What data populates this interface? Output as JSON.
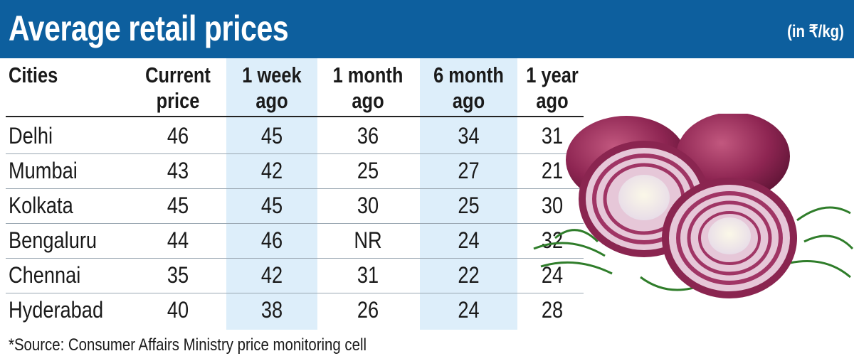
{
  "title": "Average retail prices",
  "unit_note": "(in ₹/kg)",
  "columns": [
    {
      "line1": "Cities",
      "line2": ""
    },
    {
      "line1": "Current",
      "line2": "price"
    },
    {
      "line1": "1 week",
      "line2": "ago"
    },
    {
      "line1": "1 month",
      "line2": "ago"
    },
    {
      "line1": "6 month",
      "line2": "ago"
    },
    {
      "line1": "1 year",
      "line2": "ago"
    }
  ],
  "rows": [
    {
      "city": "Delhi",
      "values": [
        "46",
        "45",
        "36",
        "34",
        "31"
      ]
    },
    {
      "city": "Mumbai",
      "values": [
        "43",
        "42",
        "25",
        "27",
        "21"
      ]
    },
    {
      "city": "Kolkata",
      "values": [
        "45",
        "45",
        "30",
        "25",
        "30"
      ]
    },
    {
      "city": "Bengaluru",
      "values": [
        "44",
        "46",
        "NR",
        "24",
        "32"
      ]
    },
    {
      "city": "Chennai",
      "values": [
        "35",
        "42",
        "31",
        "22",
        "24"
      ]
    },
    {
      "city": "Hyderabad",
      "values": [
        "40",
        "38",
        "26",
        "24",
        "28"
      ]
    }
  ],
  "source": "*Source: Consumer Affairs Ministry price monitoring cell",
  "colors": {
    "header": "#0d5f9e",
    "shade": "#ddeefa"
  },
  "chart_data": {
    "type": "table",
    "title": "Average retail prices",
    "unit": "(in ₹/kg)",
    "columns": [
      "Cities",
      "Current price",
      "1 week ago",
      "1 month ago",
      "6 month ago",
      "1 year ago"
    ],
    "rows": [
      [
        "Delhi",
        46,
        45,
        36,
        34,
        31
      ],
      [
        "Mumbai",
        43,
        42,
        25,
        27,
        21
      ],
      [
        "Kolkata",
        45,
        45,
        30,
        25,
        30
      ],
      [
        "Bengaluru",
        44,
        46,
        "NR",
        24,
        32
      ],
      [
        "Chennai",
        35,
        42,
        31,
        22,
        24
      ],
      [
        "Hyderabad",
        40,
        38,
        26,
        24,
        28
      ]
    ]
  }
}
